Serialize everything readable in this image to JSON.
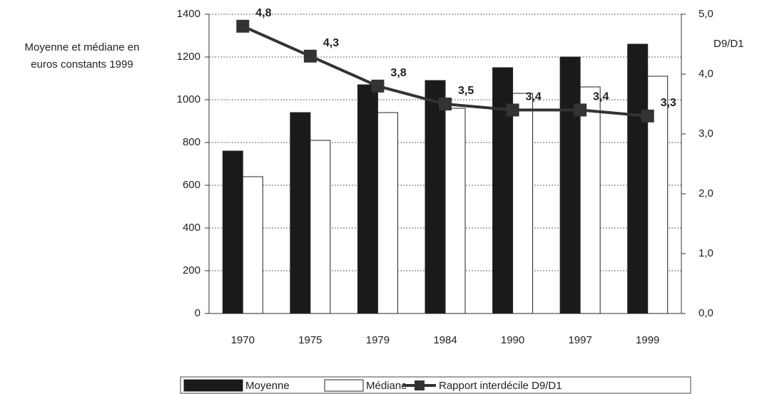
{
  "chart_data": {
    "type": "bar",
    "y_label": "Moyenne et médiane en euros constants 1999",
    "y2_label": "D9/D1",
    "categories": [
      "1970",
      "1975",
      "1979",
      "1984",
      "1990",
      "1997",
      "1999"
    ],
    "series": [
      {
        "name": "Moyenne",
        "type": "bar",
        "color": "#1a1a1a",
        "values": [
          760,
          940,
          1070,
          1090,
          1150,
          1200,
          1260
        ]
      },
      {
        "name": "Médiane",
        "type": "bar",
        "color": "#ffffff",
        "values": [
          640,
          810,
          940,
          960,
          1030,
          1060,
          1110
        ]
      },
      {
        "name": "Rapport interdécile D9/D1",
        "type": "line",
        "axis": "y2",
        "color": "#333333",
        "values": [
          4.8,
          4.3,
          3.8,
          3.5,
          3.4,
          3.4,
          3.3
        ],
        "value_labels": [
          "4,8",
          "4,3",
          "3,8",
          "3,5",
          "3,4",
          "3,4",
          "3,3"
        ]
      }
    ],
    "ylim": [
      0,
      1400
    ],
    "yticks": [
      0,
      200,
      400,
      600,
      800,
      1000,
      1200,
      1400
    ],
    "y2lim": [
      0,
      5
    ],
    "y2ticks": [
      {
        "value": 0,
        "label": "0,0"
      },
      {
        "value": 1,
        "label": "1,0"
      },
      {
        "value": 2,
        "label": "2,0"
      },
      {
        "value": 3,
        "label": "3,0"
      },
      {
        "value": 4,
        "label": "4,0"
      },
      {
        "value": 5,
        "label": "5,0"
      }
    ],
    "grid": true,
    "legend": "bottom"
  }
}
